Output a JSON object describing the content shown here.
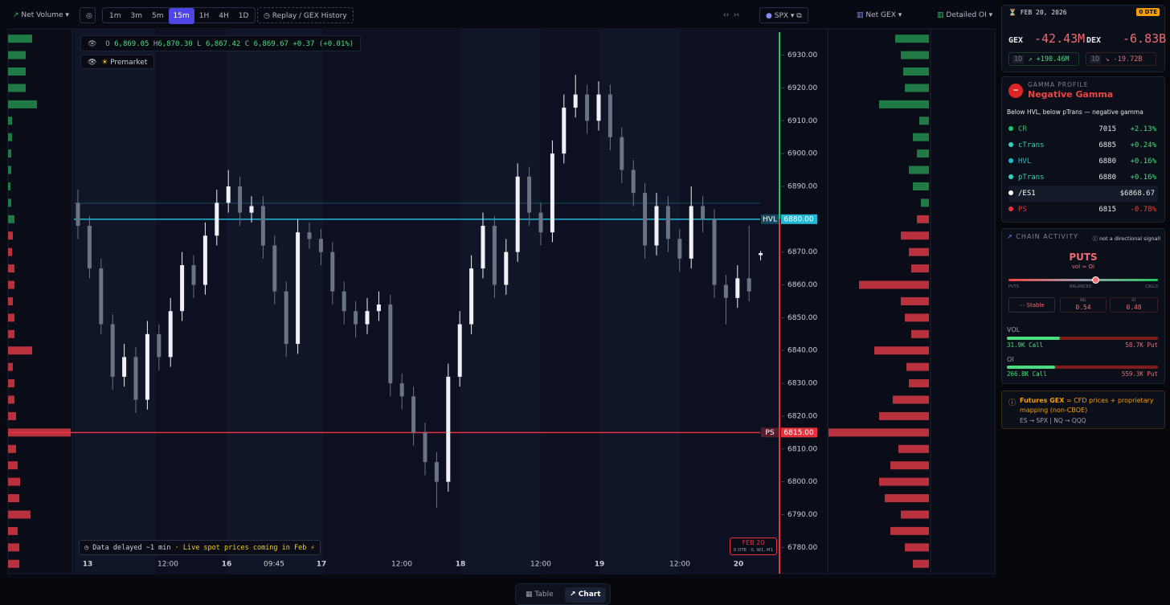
{
  "toolbar": {
    "indicator": "Net Volume",
    "timeframes": [
      "1m",
      "3m",
      "5m",
      "15m",
      "1H",
      "4H",
      "1D"
    ],
    "active_timeframe": "15m",
    "replay": "Replay / GEX History",
    "symbol": "SPX",
    "gex_mode": "Net GEX",
    "oi_mode": "Detailed OI"
  },
  "ohlc": {
    "o_label": "O",
    "o": "6,869.05",
    "h_label": "H",
    "h": "6,870.30",
    "l_label": "L",
    "l": "6,867.42",
    "c_label": "C",
    "c": "6,869.67",
    "change": "+0.37 (+0.01%)"
  },
  "premarket": "Premarket",
  "notice": {
    "text": "Data delayed ~1 min",
    "highlight": "· Live spot prices coming in Feb ⚡"
  },
  "expiry_badge": {
    "date": "FEB 20",
    "detail": "0 DTE · 0, W1, M1"
  },
  "chart_data": {
    "type": "candlestick",
    "candles": [
      [
        6885,
        6889,
        6874,
        6878
      ],
      [
        6878,
        6881,
        6862,
        6865
      ],
      [
        6865,
        6868,
        6845,
        6848
      ],
      [
        6848,
        6851,
        6828,
        6832
      ],
      [
        6832,
        6842,
        6829,
        6838
      ],
      [
        6838,
        6841,
        6821,
        6825
      ],
      [
        6825,
        6849,
        6822,
        6845
      ],
      [
        6845,
        6848,
        6834,
        6838
      ],
      [
        6838,
        6856,
        6835,
        6852
      ],
      [
        6852,
        6870,
        6849,
        6866
      ],
      [
        6866,
        6869,
        6856,
        6860
      ],
      [
        6860,
        6879,
        6857,
        6875
      ],
      [
        6875,
        6889,
        6872,
        6885
      ],
      [
        6885,
        6895,
        6882,
        6890
      ],
      [
        6890,
        6893,
        6878,
        6882
      ],
      [
        6882,
        6887,
        6879,
        6884
      ],
      [
        6884,
        6887,
        6868,
        6872
      ],
      [
        6872,
        6875,
        6854,
        6858
      ],
      [
        6858,
        6861,
        6838,
        6842
      ],
      [
        6842,
        6880,
        6839,
        6876
      ],
      [
        6876,
        6879,
        6871,
        6874
      ],
      [
        6874,
        6877,
        6866,
        6870
      ],
      [
        6870,
        6873,
        6854,
        6858
      ],
      [
        6858,
        6861,
        6848,
        6852
      ],
      [
        6852,
        6855,
        6844,
        6848
      ],
      [
        6848,
        6856,
        6845,
        6852
      ],
      [
        6852,
        6858,
        6849,
        6854
      ],
      [
        6854,
        6857,
        6826,
        6830
      ],
      [
        6830,
        6833,
        6822,
        6826
      ],
      [
        6826,
        6829,
        6811,
        6815
      ],
      [
        6815,
        6818,
        6802,
        6806
      ],
      [
        6806,
        6809,
        6792,
        6800
      ],
      [
        6800,
        6836,
        6797,
        6832
      ],
      [
        6832,
        6852,
        6829,
        6848
      ],
      [
        6848,
        6869,
        6845,
        6865
      ],
      [
        6865,
        6882,
        6862,
        6878
      ],
      [
        6878,
        6881,
        6856,
        6860
      ],
      [
        6860,
        6874,
        6857,
        6870
      ],
      [
        6870,
        6897,
        6867,
        6893
      ],
      [
        6893,
        6896,
        6878,
        6882
      ],
      [
        6882,
        6885,
        6872,
        6876
      ],
      [
        6876,
        6904,
        6873,
        6900
      ],
      [
        6900,
        6918,
        6897,
        6914
      ],
      [
        6914,
        6924,
        6911,
        6918
      ],
      [
        6918,
        6921,
        6906,
        6910
      ],
      [
        6910,
        6922,
        6907,
        6918
      ],
      [
        6918,
        6921,
        6901,
        6905
      ],
      [
        6905,
        6908,
        6891,
        6895
      ],
      [
        6895,
        6898,
        6884,
        6888
      ],
      [
        6888,
        6891,
        6868,
        6872
      ],
      [
        6872,
        6888,
        6869,
        6884
      ],
      [
        6884,
        6887,
        6870,
        6874
      ],
      [
        6874,
        6877,
        6864,
        6868
      ],
      [
        6868,
        6890,
        6865,
        6884
      ],
      [
        6884,
        6887,
        6876,
        6880
      ],
      [
        6880,
        6883,
        6856,
        6860
      ],
      [
        6860,
        6863,
        6848,
        6856
      ],
      [
        6856,
        6866,
        6853,
        6862
      ],
      [
        6862,
        6878,
        6855,
        6858
      ],
      [
        6869.05,
        6870.3,
        6867.42,
        6869.67
      ]
    ],
    "ylim": [
      6772,
      6937
    ],
    "yticks": [
      {
        "value": 6930,
        "label": "6930.00"
      },
      {
        "value": 6920,
        "label": "6920.00"
      },
      {
        "value": 6910,
        "label": "6910.00"
      },
      {
        "value": 6900,
        "label": "6900.00"
      },
      {
        "value": 6890,
        "label": "6890.00"
      },
      {
        "value": 6880,
        "label": "6880.00"
      },
      {
        "value": 6870,
        "label": "6870.00"
      },
      {
        "value": 6860,
        "label": "6860.00"
      },
      {
        "value": 6850,
        "label": "6850.00"
      },
      {
        "value": 6840,
        "label": "6840.00"
      },
      {
        "value": 6830,
        "label": "6830.00"
      },
      {
        "value": 6820,
        "label": "6820.00"
      },
      {
        "value": 6810,
        "label": "6810.00"
      },
      {
        "value": 6800,
        "label": "6800.00"
      },
      {
        "value": 6790,
        "label": "6790.00"
      },
      {
        "value": 6780,
        "label": "6780.00"
      }
    ],
    "xlabels": [
      "13",
      "12:00",
      "16",
      "09:45",
      "17",
      "12:00",
      "18",
      "12:00",
      "19",
      "12:00",
      "20"
    ],
    "levels": [
      {
        "name": "HVL",
        "value": 6880,
        "label": "6880.00",
        "color": "#22b8d6"
      },
      {
        "name": "PS",
        "value": 6815,
        "label": "6815.00",
        "color": "#e5323f"
      }
    ],
    "bull_color": "#eef1f5",
    "bear_color": "#6b7384"
  },
  "gex_data": {
    "type": "bar",
    "strikes": [
      6935,
      6930,
      6925,
      6920,
      6915,
      6910,
      6905,
      6900,
      6895,
      6890,
      6885,
      6880,
      6875,
      6870,
      6865,
      6860,
      6855,
      6850,
      6845,
      6840,
      6835,
      6830,
      6825,
      6820,
      6815,
      6810,
      6805,
      6800,
      6795,
      6790,
      6785,
      6780,
      6775
    ],
    "net_volume": [
      30,
      22,
      22,
      22,
      36,
      5,
      5,
      4,
      4,
      3,
      4,
      8,
      -6,
      -5,
      -8,
      -8,
      -6,
      -8,
      -8,
      -30,
      -6,
      -8,
      -8,
      -10,
      -78,
      -10,
      -12,
      -15,
      -14,
      -28,
      -12,
      -14,
      -14
    ],
    "net_gex": [
      42,
      35,
      32,
      30,
      62,
      12,
      20,
      15,
      25,
      20,
      10,
      -15,
      -35,
      -25,
      -22,
      -87,
      -35,
      -30,
      -22,
      -68,
      -28,
      -25,
      -45,
      -62,
      -125,
      -38,
      -48,
      -62,
      -55,
      -35,
      -48,
      -30,
      -20
    ],
    "positive_color": "#1f7a45",
    "negative_color": "#b8313c"
  },
  "sidebar": {
    "date": "FEB 20, 2026",
    "dte": "0 DTE",
    "gex": {
      "label": "GEX",
      "value": "-42.43M",
      "period": "1D",
      "change": "+190.46M"
    },
    "dex": {
      "label": "DEX",
      "value": "-6.83B",
      "period": "1D",
      "change": "-19.72B"
    },
    "gamma": {
      "heading": "GAMMA PROFILE",
      "state": "Negative Gamma",
      "note": "Below HVL, below pTrans — negative gamma"
    },
    "levels": [
      {
        "name": "CR",
        "value": "7015",
        "change": "+2.13%",
        "color": "#22c55e"
      },
      {
        "name": "cTrans",
        "value": "6885",
        "change": "+0.24%",
        "color": "#2dd4bf"
      },
      {
        "name": "HVL",
        "value": "6880",
        "change": "+0.16%",
        "color": "#22b8d6"
      },
      {
        "name": "pTrans",
        "value": "6880",
        "change": "+0.16%",
        "color": "#2dd4bf"
      },
      {
        "name": "/ES1",
        "value": "$6868.67",
        "color": "#ffffff"
      },
      {
        "name": "PS",
        "value": "6815",
        "change": "-0.78%",
        "color": "#e5323f"
      }
    ],
    "chain": {
      "heading": "CHAIN ACTIVITY",
      "disclaimer": "not a directional signal!",
      "side": "PUTS",
      "ratio": "vol ≈ OI",
      "scale": [
        "PUTS",
        "BALANCED",
        "CALLS"
      ],
      "trend": "Stable",
      "vol_label": "VOL",
      "vol": "0.54",
      "oi_label": "OI",
      "oi": "0.48"
    },
    "vol": {
      "label": "VOL",
      "call": "31.9K Call",
      "put": "58.7K Put"
    },
    "oi": {
      "label": "OI",
      "call": "266.8K Call",
      "put": "559.3K Put"
    },
    "futures": {
      "title": "Futures GEX",
      "text": "= CFD prices + proprietary mapping (non-CBOE)",
      "map": "ES → SPX | NQ → QQQ"
    }
  },
  "tabs": [
    "Table",
    "Chart"
  ]
}
